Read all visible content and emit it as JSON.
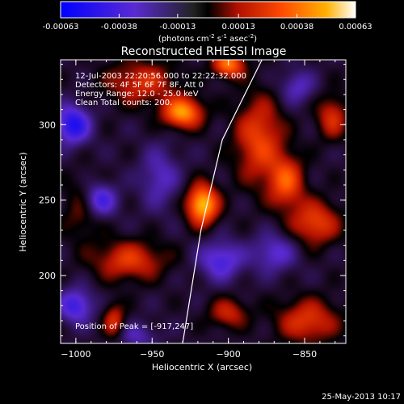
{
  "chart_data": {
    "type": "heatmap",
    "title": "Reconstructed RHESSI Image",
    "xlabel": "Heliocentric X (arcsec)",
    "ylabel": "Heliocentric Y (arcsec)",
    "xlim": [
      -1010,
      -823
    ],
    "ylim": [
      155,
      343
    ],
    "x_ticks": [
      -1000,
      -950,
      -900,
      -850
    ],
    "y_ticks": [
      200,
      250,
      300
    ],
    "colorbar": {
      "ticks": [
        "-0.00063",
        "-0.00038",
        "-0.00013",
        "0.00013",
        "0.00038",
        "0.00063"
      ],
      "range": [
        -0.00063,
        0.00063
      ],
      "unit_label": "(photons cm",
      "unit_exp1": "-2",
      "unit_mid": " s",
      "unit_exp2": "-1",
      "unit_mid2": " asec",
      "unit_exp3": "-2",
      "unit_end": ")"
    },
    "annotations": [
      "12-Jul-2003 22:20:56.000 to 22:22:32.000",
      "Detectors: 4F 5F 6F 7F 8F, Att 0",
      "Energy Range: 12.0 - 25.0 keV",
      "Clean     Total counts: 200."
    ],
    "peak_label": "Position of Peak = [-917,247]",
    "peak": [
      -917,
      247
    ],
    "limb_points": [
      [
        -930,
        155
      ],
      [
        -918,
        230
      ],
      [
        -904,
        290
      ],
      [
        -878,
        343
      ]
    ],
    "sources": [
      {
        "x": -917,
        "y": 247,
        "sx": 7,
        "sy": 9,
        "a": 1.0
      },
      {
        "x": -930,
        "y": 308,
        "sx": 9,
        "sy": 7,
        "a": 0.85
      },
      {
        "x": -900,
        "y": 340,
        "sx": 7,
        "sy": 6,
        "a": 0.75
      },
      {
        "x": -957,
        "y": 328,
        "sx": 16,
        "sy": 10,
        "a": 0.45
      },
      {
        "x": -880,
        "y": 290,
        "sx": 11,
        "sy": 20,
        "a": 0.55
      },
      {
        "x": -862,
        "y": 262,
        "sx": 8,
        "sy": 12,
        "a": 0.6
      },
      {
        "x": -843,
        "y": 235,
        "sx": 11,
        "sy": 10,
        "a": 0.55
      },
      {
        "x": -848,
        "y": 170,
        "sx": 14,
        "sy": 10,
        "a": 0.5
      },
      {
        "x": -965,
        "y": 210,
        "sx": 16,
        "sy": 9,
        "a": 0.5
      },
      {
        "x": -975,
        "y": 170,
        "sx": 5,
        "sy": 8,
        "a": 0.45
      },
      {
        "x": -900,
        "y": 175,
        "sx": 9,
        "sy": 7,
        "a": 0.4
      },
      {
        "x": -832,
        "y": 305,
        "sx": 7,
        "sy": 10,
        "a": 0.45
      },
      {
        "x": -995,
        "y": 245,
        "sx": 9,
        "sy": 14,
        "a": 0.3
      },
      {
        "x": -1002,
        "y": 300,
        "sx": 8,
        "sy": 9,
        "a": -0.7
      },
      {
        "x": -985,
        "y": 250,
        "sx": 8,
        "sy": 8,
        "a": -0.6
      },
      {
        "x": -945,
        "y": 265,
        "sx": 9,
        "sy": 14,
        "a": -0.35
      },
      {
        "x": -905,
        "y": 210,
        "sx": 10,
        "sy": 9,
        "a": -0.5
      },
      {
        "x": -1000,
        "y": 180,
        "sx": 8,
        "sy": 8,
        "a": -0.55
      },
      {
        "x": -870,
        "y": 215,
        "sx": 10,
        "sy": 9,
        "a": -0.4
      },
      {
        "x": -855,
        "y": 325,
        "sx": 8,
        "sy": 8,
        "a": -0.35
      },
      {
        "x": -960,
        "y": 160,
        "sx": 9,
        "sy": 6,
        "a": -0.3
      }
    ]
  },
  "footer": {
    "date": "25-May-2013 10:17"
  }
}
